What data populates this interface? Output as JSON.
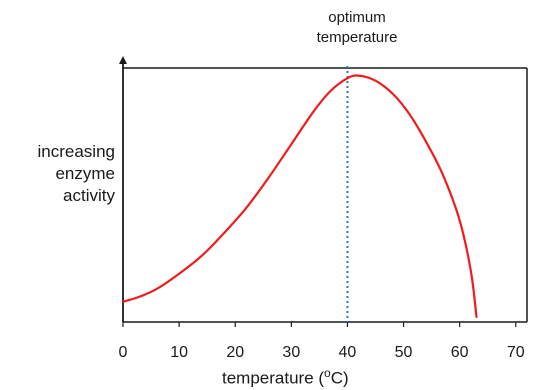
{
  "chart_data": {
    "type": "line",
    "title": "",
    "xlabel_prefix": "temperature (",
    "xlabel_unit": "o",
    "xlabel_suffix": "C)",
    "ylabel_lines": [
      "increasing",
      "enzyme",
      "activity"
    ],
    "annotation_lines": [
      "optimum",
      "temperature"
    ],
    "xlim": [
      0,
      72
    ],
    "ylim": [
      0,
      100
    ],
    "x_ticks": [
      0,
      10,
      20,
      30,
      40,
      50,
      60,
      70
    ],
    "grid": false,
    "series": [
      {
        "color": "#ee1c1c",
        "x": [
          0,
          3,
          6,
          10,
          14,
          18,
          22,
          26,
          30,
          34,
          37,
          40,
          42,
          45,
          48,
          51,
          54,
          57,
          60,
          62,
          63
        ],
        "y": [
          8,
          10,
          13,
          19,
          26,
          35,
          45,
          57,
          70,
          83,
          91,
          96,
          97,
          95,
          90,
          82,
          71,
          58,
          40,
          20,
          2
        ]
      }
    ],
    "optimum_line": {
      "x": 40,
      "color": "#1f78d1",
      "style": "dotted"
    }
  }
}
